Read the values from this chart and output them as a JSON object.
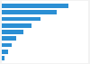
{
  "values": [
    32.5,
    26.5,
    19.0,
    14.5,
    10.5,
    7.0,
    4.8,
    3.2,
    1.5
  ],
  "bar_color": "#2b8fd4",
  "background_color": "#f2f2f2",
  "plot_bg_color": "#ffffff",
  "ylim": [
    -0.7,
    8.7
  ],
  "xlim": [
    0,
    42
  ]
}
